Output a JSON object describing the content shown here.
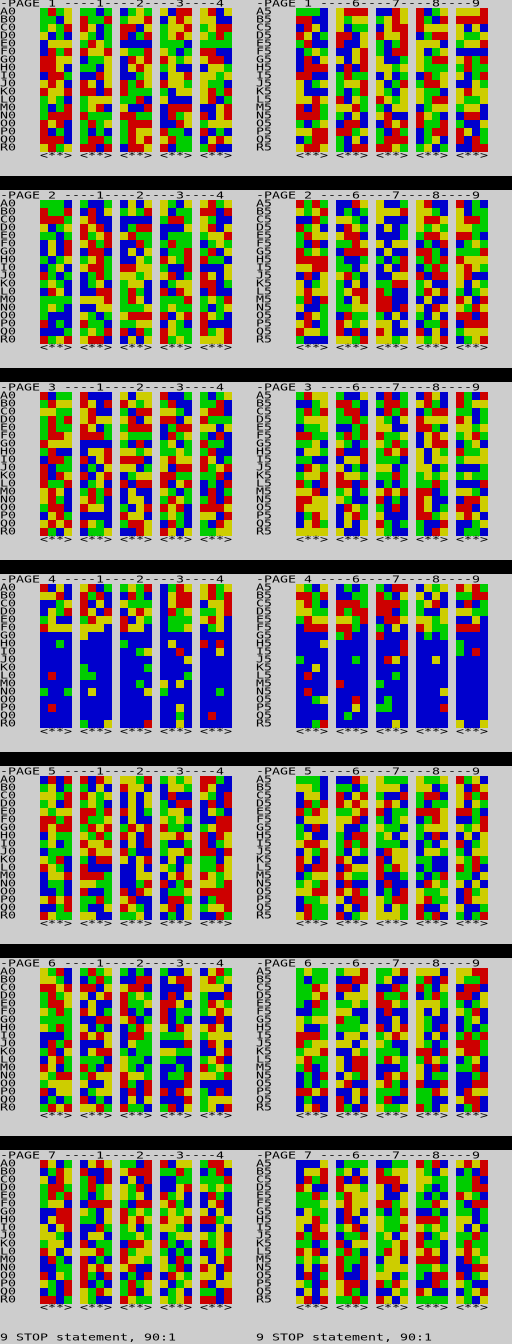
{
  "pages": [
    {
      "left_title": "-PAGE 1 ----1----2----3----4",
      "right_title": "-PAGE 1 ----6----7----8----9"
    },
    {
      "left_title": "-PAGE 2 ----1----2----3----4",
      "right_title": "-PAGE 2 ----6----7----8----9"
    },
    {
      "left_title": "-PAGE 3 ----1----2----3----4",
      "right_title": "-PAGE 3 ----6----7----8----9"
    },
    {
      "left_title": "-PAGE 4 ----1----2----3----4",
      "right_title": "-PAGE 4 ----6----7----8----9"
    },
    {
      "left_title": "-PAGE 5 ----1----2----3----4",
      "right_title": "-PAGE 5 ----6----7----8----9"
    },
    {
      "left_title": "-PAGE 6 ----1----2----3----4",
      "right_title": "-PAGE 6 ----6----7----8----9"
    },
    {
      "left_title": "-PAGE 7 ----1----2----3----4",
      "right_title": "-PAGE 7 ----6----7----8----9"
    }
  ],
  "left_rows": [
    "A0",
    "B0",
    "C0",
    "D0",
    "E0",
    "F0",
    "G0",
    "H0",
    "I0",
    "J0",
    "K0",
    "L0",
    "M0",
    "N0",
    "O0",
    "P0",
    "Q0",
    "R0"
  ],
  "right_rows": [
    "A5",
    "B5",
    "C5",
    "D5",
    "E5",
    "F5",
    "G5",
    "H5",
    "I5",
    "J5",
    "K5",
    "L5",
    "M5",
    "N5",
    "O5",
    "P5",
    "Q5",
    "R5"
  ],
  "grid_footer": "<**>",
  "status": [
    "9 STOP statement, 90:1",
    "9 STOP statement, 90:1"
  ]
}
